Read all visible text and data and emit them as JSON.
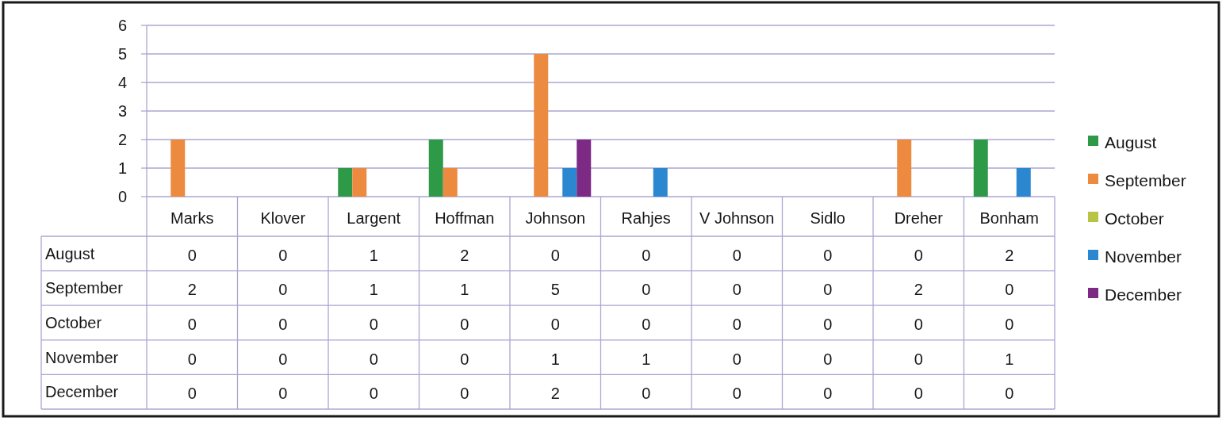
{
  "chart_data": {
    "type": "bar",
    "categories": [
      "Marks",
      "Klover",
      "Largent",
      "Hoffman",
      "Johnson",
      "Rahjes",
      "V Johnson",
      "Sidlo",
      "Dreher",
      "Bonham"
    ],
    "series": [
      {
        "name": "August",
        "color": "#2e9a48",
        "values": [
          0,
          0,
          1,
          2,
          0,
          0,
          0,
          0,
          0,
          2
        ]
      },
      {
        "name": "September",
        "color": "#ec8a40",
        "values": [
          2,
          0,
          1,
          1,
          5,
          0,
          0,
          0,
          2,
          0
        ]
      },
      {
        "name": "October",
        "color": "#b7c446",
        "values": [
          0,
          0,
          0,
          0,
          0,
          0,
          0,
          0,
          0,
          0
        ]
      },
      {
        "name": "November",
        "color": "#2b88d0",
        "values": [
          0,
          0,
          0,
          0,
          1,
          1,
          0,
          0,
          0,
          1
        ]
      },
      {
        "name": "December",
        "color": "#7c2a84",
        "values": [
          0,
          0,
          0,
          0,
          2,
          0,
          0,
          0,
          0,
          0
        ]
      }
    ],
    "ylim": [
      0,
      6
    ],
    "yticks": [
      0,
      1,
      2,
      3,
      4,
      5,
      6
    ],
    "grid": "y",
    "legend": "right",
    "data_labels": true
  }
}
